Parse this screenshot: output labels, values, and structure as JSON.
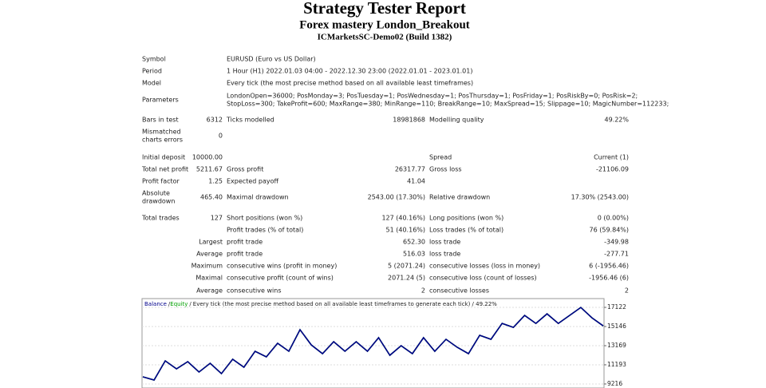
{
  "header": {
    "title": "Strategy Tester Report",
    "subtitle": "Forex mastery London_Breakout",
    "build": "ICMarketsSC-Demo02 (Build 1382)"
  },
  "report": {
    "rows": [
      {
        "label": "Symbol",
        "text": "EURUSD (Euro vs US Dollar)"
      },
      {
        "label": "Period",
        "text": "1 Hour (H1) 2022.01.03 04:00 - 2022.12.30 23:00 (2022.01.01 - 2023.01.01)"
      },
      {
        "label": "Model",
        "text": "Every tick (the most precise method based on all available least timeframes)"
      },
      {
        "label": "Parameters",
        "text": [
          "LondonOpen=36000; PosMonday=3; PosTuesday=1; PosWednesday=1; PosThursday=1; PosFriday=1; PosRiskBy=0; PosRisk=2;",
          "StopLoss=300; TakeProfit=600; MaxRange=380; MinRange=110; BreakRange=10; MaxSpread=15; Slippage=10; MagicNumber=112233;"
        ]
      },
      {
        "label": "Bars in test",
        "value": "6312",
        "label2": "Ticks modelled",
        "value2": "18981868",
        "label3": "Modelling quality",
        "value3": "49.22%"
      },
      {
        "label": [
          "Mismatched",
          "charts errors"
        ],
        "value": "0"
      },
      {
        "label": "Initial deposit",
        "value": "10000.00",
        "label3": "Spread",
        "value3": "Current (1)"
      },
      {
        "label": "Total net profit",
        "value": "5211.67",
        "label2": "Gross profit",
        "value2": "26317.77",
        "label3": "Gross loss",
        "value3": "-21106.09"
      },
      {
        "label": "Profit factor",
        "value": "1.25",
        "label2": "Expected payoff",
        "value2": "41.04"
      },
      {
        "label": [
          "Absolute",
          "drawdown"
        ],
        "value": "465.40",
        "label2": "Maximal drawdown",
        "value2": "2543.00 (17.30%)",
        "label3": "Relative drawdown",
        "value3": "17.30% (2543.00)"
      },
      {
        "label": "Total trades",
        "value": "127",
        "label2": "Short positions (won %)",
        "value2": "127 (40.16%)",
        "label3": "Long positions (won %)",
        "value3": "0 (0.00%)"
      },
      {
        "label2": "Profit trades (% of total)",
        "value2": "51 (40.16%)",
        "label3": "Loss trades (% of total)",
        "value3": "76 (59.84%)"
      },
      {
        "value": "Largest",
        "label2": "profit trade",
        "value2": "652.30",
        "label3": "loss trade",
        "value3": "-349.98"
      },
      {
        "value": "Average",
        "label2": "profit trade",
        "value2": "516.03",
        "label3": "loss trade",
        "value3": "-277.71"
      },
      {
        "value": "Maximum",
        "label2": "consecutive wins (profit in money)",
        "value2": "5 (2071.24)",
        "label3": "consecutive losses (loss in money)",
        "value3": "6 (-1956.46)"
      },
      {
        "value": "Maximal",
        "label2": "consecutive profit (count of wins)",
        "value2": "2071.24 (5)",
        "label3": "consecutive loss (count of losses)",
        "value3": "-1956.46 (6)"
      },
      {
        "value": "Average",
        "label2": "consecutive wins",
        "value2": "2",
        "label3": "consecutive losses",
        "value3": "2"
      }
    ]
  },
  "chart_data": {
    "type": "line",
    "legend_separator": "/",
    "note": "Every tick (the most precise method based on all available least timeframes to generate each tick) / 49.22%",
    "series": [
      {
        "name": "Equity",
        "color": "#00a000",
        "values": [
          9957,
          9628,
          11603,
          10780,
          11520,
          10450,
          11356,
          10286,
          11767,
          10944,
          12590,
          12014,
          13413,
          12590,
          14812,
          13249,
          12343,
          13578,
          12590,
          13578,
          12590,
          13989,
          12179,
          13166,
          12343,
          13989,
          12590,
          13825,
          13002,
          12343,
          14236,
          13825,
          15471,
          15059,
          16294,
          15471,
          16458,
          15471,
          16294,
          17117,
          16047,
          15211
        ]
      },
      {
        "name": "Balance",
        "color": "#00008b",
        "values": [
          9957,
          9628,
          11603,
          10780,
          11520,
          10450,
          11356,
          10286,
          11767,
          10944,
          12590,
          12014,
          13413,
          12590,
          14812,
          13249,
          12343,
          13578,
          12590,
          13578,
          12590,
          13989,
          12179,
          13166,
          12343,
          13989,
          12590,
          13825,
          13002,
          12343,
          14236,
          13825,
          15471,
          15059,
          16294,
          15471,
          16458,
          15471,
          16294,
          17117,
          16047,
          15211
        ]
      }
    ],
    "ylim": [
      8800,
      18030
    ],
    "yticks": [
      9216,
      11193,
      13169,
      15146,
      17122
    ],
    "grid": true
  }
}
